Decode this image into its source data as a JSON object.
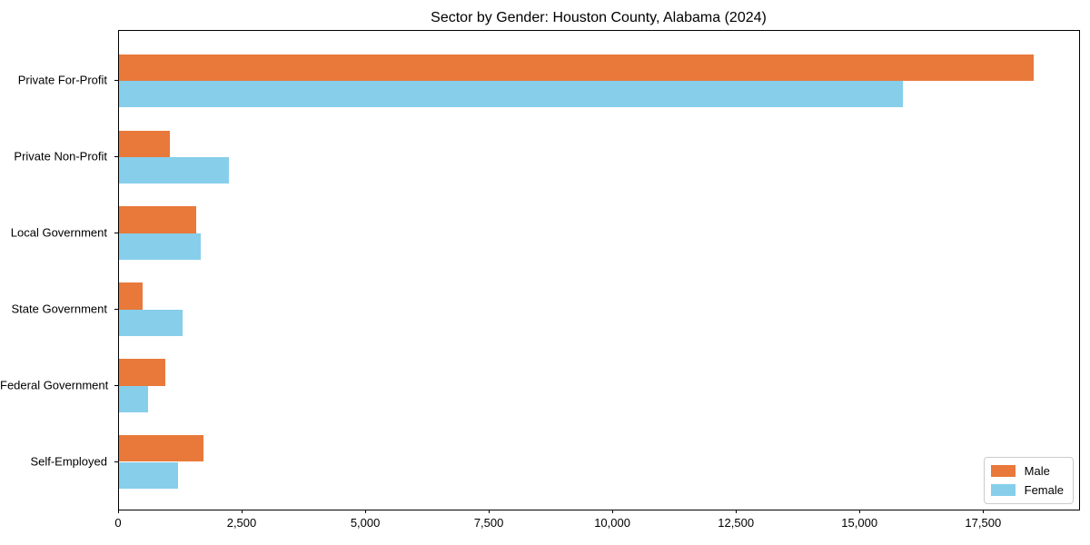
{
  "title": "Sector by Gender: Houston County, Alabama (2024)",
  "colors": {
    "male": "#E8793B",
    "female": "#87CEEB",
    "axis": "#000000",
    "text": "#000000",
    "legend_border": "#cccccc",
    "background": "#ffffff"
  },
  "chart_data": {
    "type": "bar",
    "orientation": "horizontal",
    "title": "Sector by Gender: Houston County, Alabama (2024)",
    "categories": [
      "Private For-Profit",
      "Private Non-Profit",
      "Local Government",
      "State Government",
      "Federal Government",
      "Self-Employed"
    ],
    "series": [
      {
        "name": "Male",
        "color": "#E8793B",
        "values": [
          18500,
          1030,
          1570,
          470,
          940,
          1700
        ]
      },
      {
        "name": "Female",
        "color": "#87CEEB",
        "values": [
          15850,
          2230,
          1660,
          1290,
          580,
          1200
        ]
      }
    ],
    "xlabel": "",
    "ylabel": "",
    "xlim": [
      0,
      19425
    ],
    "xticks": [
      0,
      2500,
      5000,
      7500,
      10000,
      12500,
      15000,
      17500
    ],
    "xtick_labels": [
      "0",
      "2,500",
      "5,000",
      "7,500",
      "10,000",
      "12,500",
      "15,000",
      "17,500"
    ],
    "grid": false,
    "legend": {
      "position": "lower right",
      "entries": [
        "Male",
        "Female"
      ]
    }
  }
}
